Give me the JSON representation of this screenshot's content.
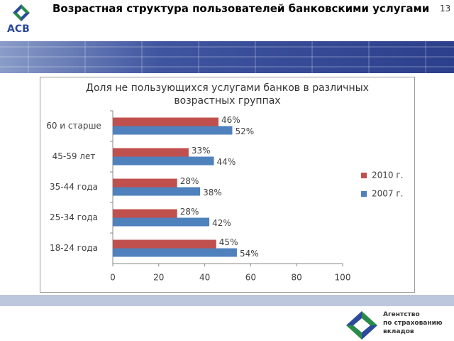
{
  "header": {
    "title": "Возрастная структура пользователей банковскими услугами",
    "page": "13",
    "logo": "АСВ"
  },
  "footer": {
    "lines": [
      "Агентство",
      "по страхованию",
      "вкладов"
    ]
  },
  "chart_data": {
    "type": "hbar",
    "title": "Доля не пользующихся услугами банков в различных возрастных группах",
    "categories": [
      "60 и старше",
      "45-59 лет",
      "35-44 года",
      "25-34 года",
      "18-24 года"
    ],
    "series": [
      {
        "name": "2010 г.",
        "color": "#c0504d",
        "values": [
          46,
          33,
          28,
          28,
          45
        ],
        "value_labels": [
          "46%",
          "33%",
          "28%",
          "28%",
          "45%"
        ]
      },
      {
        "name": "2007 г.",
        "color": "#4f81bd",
        "values": [
          52,
          44,
          38,
          42,
          54
        ],
        "value_labels": [
          "52%",
          "44%",
          "38%",
          "42%",
          "54%"
        ]
      }
    ],
    "xlim": [
      0,
      100
    ],
    "xticks": [
      0,
      20,
      40,
      60,
      80,
      100
    ],
    "legend": "right"
  }
}
